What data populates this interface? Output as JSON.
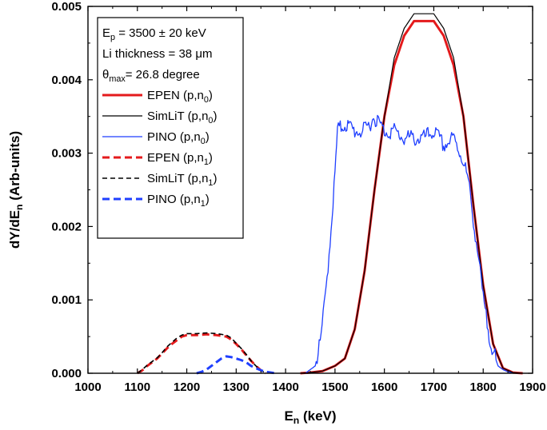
{
  "chart_data": {
    "type": "line",
    "xlabel": {
      "main": "E",
      "sub": "n",
      "tail": " (keV)"
    },
    "ylabel": {
      "main": "dY/dE",
      "sub": "n",
      "tail": " (Arb-units)"
    },
    "xlim": [
      1000,
      1900
    ],
    "ylim": [
      0,
      0.005
    ],
    "x_ticks": [
      "1000",
      "1100",
      "1200",
      "1300",
      "1400",
      "1500",
      "1600",
      "1700",
      "1800",
      "1900"
    ],
    "y_ticks": [
      "0.000",
      "0.001",
      "0.002",
      "0.003",
      "0.004",
      "0.005"
    ],
    "annotations": [
      {
        "main": "E",
        "sub": "p",
        "tail": " = 3500 ± 20 keV"
      },
      {
        "main": "Li thickness = 38 μm",
        "sub": "",
        "tail": ""
      },
      {
        "main": "θ",
        "sub": "max",
        "tail": "= 26.8 degree"
      }
    ],
    "series": [
      {
        "name": {
          "main": "EPEN (p,n",
          "sub": "0",
          "tail": ")"
        },
        "color": "#e41a1c",
        "style": "solid",
        "width": 3,
        "x": [
          1430,
          1450,
          1475,
          1500,
          1520,
          1540,
          1560,
          1580,
          1600,
          1620,
          1640,
          1660,
          1680,
          1700,
          1720,
          1740,
          1760,
          1780,
          1800,
          1820,
          1840,
          1860,
          1880
        ],
        "y": [
          0,
          1e-05,
          3e-05,
          0.0001,
          0.0002,
          0.0006,
          0.0014,
          0.0025,
          0.0035,
          0.0042,
          0.0046,
          0.0048,
          0.0048,
          0.0048,
          0.0046,
          0.0042,
          0.0035,
          0.0023,
          0.0012,
          0.0004,
          7e-05,
          1e-05,
          0
        ]
      },
      {
        "name": {
          "main": "SimLiT (p,n",
          "sub": "0",
          "tail": ")"
        },
        "color": "#000000",
        "style": "solid",
        "width": 1.2,
        "x": [
          1430,
          1450,
          1475,
          1500,
          1520,
          1540,
          1560,
          1580,
          1600,
          1620,
          1640,
          1660,
          1680,
          1700,
          1720,
          1740,
          1760,
          1780,
          1800,
          1820,
          1840,
          1860,
          1880
        ],
        "y": [
          0,
          1e-05,
          3e-05,
          0.0001,
          0.0002,
          0.0006,
          0.0014,
          0.0025,
          0.0035,
          0.0043,
          0.0047,
          0.0049,
          0.0049,
          0.0049,
          0.0047,
          0.0043,
          0.0035,
          0.0023,
          0.0012,
          0.0004,
          7e-05,
          1e-05,
          0
        ]
      },
      {
        "name": {
          "main": "PINO (p,n",
          "sub": "0",
          "tail": ")"
        },
        "color": "#1f3fff",
        "style": "solid",
        "width": 1.3,
        "x": [
          1440,
          1460,
          1470,
          1480,
          1490,
          1500,
          1505,
          1520,
          1540,
          1560,
          1580,
          1600,
          1620,
          1640,
          1660,
          1680,
          1700,
          1720,
          1740,
          1760,
          1770,
          1780,
          1790,
          1800,
          1810,
          1820,
          1830,
          1840,
          1850,
          1860
        ],
        "y": [
          0,
          0.0001,
          0.0004,
          0.001,
          0.0018,
          0.0027,
          0.0033,
          0.0034,
          0.0033,
          0.0033,
          0.0035,
          0.0033,
          0.0033,
          0.0032,
          0.0032,
          0.0032,
          0.0033,
          0.0031,
          0.0032,
          0.0029,
          0.0026,
          0.0021,
          0.0016,
          0.001,
          0.0006,
          0.0003,
          0.0001,
          5e-05,
          2e-05,
          0
        ]
      },
      {
        "name": {
          "main": "EPEN (p,n",
          "sub": "1",
          "tail": ")"
        },
        "color": "#e41a1c",
        "style": "dashed",
        "width": 3,
        "x": [
          1100,
          1110,
          1120,
          1130,
          1140,
          1150,
          1160,
          1170,
          1180,
          1190,
          1200,
          1220,
          1240,
          1260,
          1280,
          1290,
          1300,
          1310,
          1320,
          1330,
          1340,
          1350,
          1360
        ],
        "y": [
          0,
          4e-05,
          0.0001,
          0.00015,
          0.0002,
          0.00027,
          0.00034,
          0.0004,
          0.00045,
          0.0005,
          0.00052,
          0.00052,
          0.00053,
          0.00052,
          0.0005,
          0.00046,
          0.0004,
          0.00033,
          0.00025,
          0.00017,
          0.0001,
          4e-05,
          0
        ]
      },
      {
        "name": {
          "main": "SimLiT (p,n",
          "sub": "1",
          "tail": ")"
        },
        "color": "#000000",
        "style": "dashed",
        "width": 1.6,
        "x": [
          1100,
          1110,
          1120,
          1130,
          1140,
          1150,
          1160,
          1170,
          1180,
          1190,
          1200,
          1220,
          1240,
          1260,
          1280,
          1290,
          1300,
          1310,
          1320,
          1330,
          1340,
          1350,
          1360
        ],
        "y": [
          0,
          5e-05,
          0.00011,
          0.00016,
          0.00021,
          0.00028,
          0.00036,
          0.00042,
          0.00048,
          0.00052,
          0.00054,
          0.00054,
          0.00055,
          0.00054,
          0.00052,
          0.00048,
          0.00041,
          0.00034,
          0.00026,
          0.00017,
          0.0001,
          4e-05,
          0
        ]
      },
      {
        "name": {
          "main": "PINO (p,n",
          "sub": "1",
          "tail": ")"
        },
        "color": "#1f3fff",
        "style": "dashed",
        "width": 3,
        "x": [
          1220,
          1230,
          1240,
          1250,
          1260,
          1270,
          1280,
          1290,
          1300,
          1310,
          1320,
          1330,
          1340,
          1350,
          1360,
          1370,
          1380
        ],
        "y": [
          0,
          2e-05,
          5e-05,
          0.0001,
          0.00015,
          0.0002,
          0.00023,
          0.00022,
          0.0002,
          0.00018,
          0.00015,
          0.0001,
          7e-05,
          4e-05,
          2e-05,
          1e-05,
          0
        ]
      }
    ]
  }
}
